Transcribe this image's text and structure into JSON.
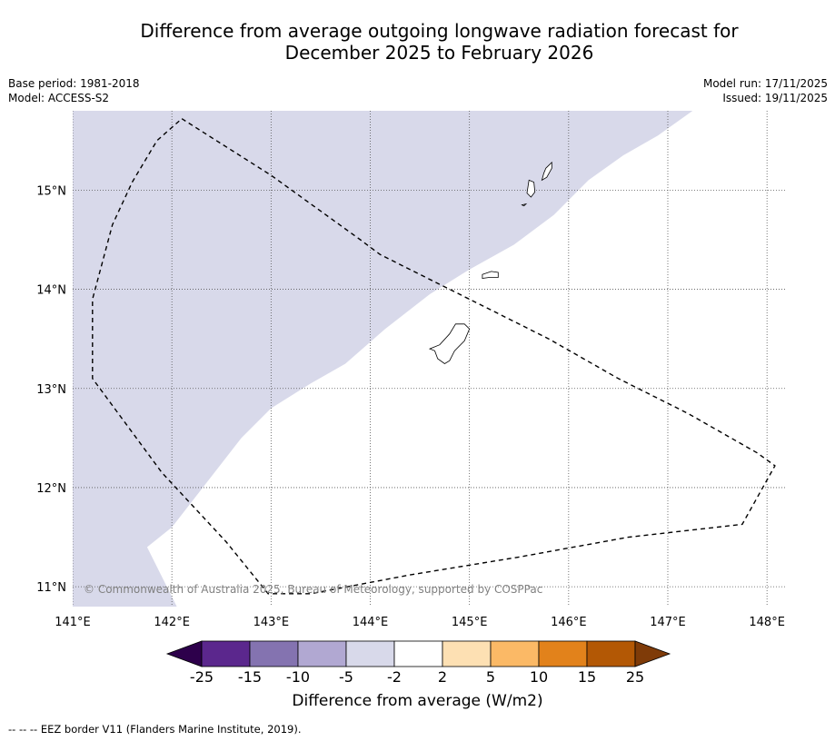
{
  "title_line1": "Difference from average outgoing longwave radiation forecast for",
  "title_line2": "December 2025 to February 2026",
  "meta_left": {
    "base_period": "Base period: 1981-2018",
    "model": "Model: ACCESS-S2"
  },
  "meta_right": {
    "model_run": "Model run: 17/11/2025",
    "issued": "Issued: 19/11/2025"
  },
  "map": {
    "lon_range": [
      141.0,
      148.2
    ],
    "lat_range": [
      10.8,
      15.8
    ],
    "lon_ticks": [
      {
        "value": 141,
        "label": "141°E"
      },
      {
        "value": 142,
        "label": "142°E"
      },
      {
        "value": 143,
        "label": "143°E"
      },
      {
        "value": 144,
        "label": "144°E"
      },
      {
        "value": 145,
        "label": "145°E"
      },
      {
        "value": 146,
        "label": "146°E"
      },
      {
        "value": 147,
        "label": "147°E"
      },
      {
        "value": 148,
        "label": "148°E"
      }
    ],
    "lat_ticks": [
      {
        "value": 11,
        "label": "11°N"
      },
      {
        "value": 12,
        "label": "12°N"
      },
      {
        "value": 13,
        "label": "13°N"
      },
      {
        "value": 14,
        "label": "14°N"
      },
      {
        "value": 15,
        "label": "15°N"
      }
    ],
    "negative_region_category": "-5 to -2",
    "negative_region_boundary": [
      [
        141.0,
        15.8
      ],
      [
        147.25,
        15.8
      ],
      [
        146.9,
        15.55
      ],
      [
        146.55,
        15.35
      ],
      [
        146.2,
        15.1
      ],
      [
        145.85,
        14.75
      ],
      [
        145.45,
        14.45
      ],
      [
        145.0,
        14.2
      ],
      [
        144.6,
        13.95
      ],
      [
        144.15,
        13.6
      ],
      [
        143.75,
        13.25
      ],
      [
        143.4,
        13.05
      ],
      [
        143.0,
        12.8
      ],
      [
        142.7,
        12.5
      ],
      [
        142.35,
        12.05
      ],
      [
        142.0,
        11.6
      ],
      [
        141.75,
        11.4
      ],
      [
        142.05,
        10.8
      ],
      [
        141.0,
        10.8
      ]
    ],
    "eez_border": [
      [
        142.1,
        15.72
      ],
      [
        143.0,
        15.15
      ],
      [
        143.9,
        14.5
      ],
      [
        144.1,
        14.35
      ],
      [
        144.5,
        14.15
      ],
      [
        145.2,
        13.8
      ],
      [
        145.8,
        13.5
      ],
      [
        146.5,
        13.1
      ],
      [
        147.2,
        12.75
      ],
      [
        147.9,
        12.35
      ],
      [
        148.08,
        12.22
      ],
      [
        147.75,
        11.63
      ],
      [
        146.6,
        11.5
      ],
      [
        145.5,
        11.3
      ],
      [
        144.4,
        11.12
      ],
      [
        143.4,
        10.93
      ],
      [
        142.97,
        10.93
      ],
      [
        142.55,
        11.45
      ],
      [
        141.9,
        12.15
      ],
      [
        141.2,
        13.1
      ],
      [
        141.2,
        13.25
      ],
      [
        141.2,
        13.9
      ],
      [
        141.4,
        14.65
      ],
      [
        141.6,
        15.08
      ],
      [
        141.85,
        15.5
      ],
      [
        142.1,
        15.72
      ]
    ],
    "islands": [
      {
        "name": "Guam",
        "outline": [
          [
            144.95,
            13.65
          ],
          [
            145.0,
            13.6
          ],
          [
            144.95,
            13.48
          ],
          [
            144.85,
            13.38
          ],
          [
            144.8,
            13.28
          ],
          [
            144.75,
            13.25
          ],
          [
            144.68,
            13.3
          ],
          [
            144.65,
            13.38
          ],
          [
            144.6,
            13.4
          ],
          [
            144.7,
            13.44
          ],
          [
            144.8,
            13.55
          ],
          [
            144.86,
            13.65
          ]
        ]
      },
      {
        "name": "Rota",
        "outline": [
          [
            145.13,
            14.15
          ],
          [
            145.22,
            14.18
          ],
          [
            145.29,
            14.17
          ],
          [
            145.29,
            14.12
          ],
          [
            145.2,
            14.12
          ],
          [
            145.13,
            14.11
          ]
        ]
      },
      {
        "name": "Tinian",
        "outline": [
          [
            145.6,
            15.1
          ],
          [
            145.65,
            15.08
          ],
          [
            145.66,
            14.98
          ],
          [
            145.62,
            14.93
          ],
          [
            145.58,
            14.97
          ]
        ]
      },
      {
        "name": "Saipan",
        "outline": [
          [
            145.77,
            15.22
          ],
          [
            145.83,
            15.28
          ],
          [
            145.83,
            15.22
          ],
          [
            145.78,
            15.13
          ],
          [
            145.73,
            15.1
          ],
          [
            145.75,
            15.17
          ]
        ]
      },
      {
        "name": "Aguijan",
        "outline": [
          [
            145.53,
            14.85
          ],
          [
            145.57,
            14.86
          ],
          [
            145.55,
            14.84
          ]
        ]
      }
    ]
  },
  "copyright": "© Commonwealth of Australia 2025, Bureau of Meteorology, supported by COSPPac",
  "colorbar": {
    "label": "Difference from average (W/m2)",
    "tick_labels": [
      "-25",
      "-15",
      "-10",
      "-5",
      "-2",
      "2",
      "5",
      "10",
      "15",
      "25"
    ],
    "colors": [
      "#5b278d",
      "#8473b0",
      "#b1a8d2",
      "#d8d9ea",
      "#ffffff",
      "#fde0b3",
      "#fbb966",
      "#e2821b",
      "#b35805"
    ],
    "extend_low_color": "#2d004b",
    "extend_high_color": "#7f3b08"
  },
  "footnote": "-- -- -- EEZ border V11 (Flanders Marine Institute, 2019)."
}
